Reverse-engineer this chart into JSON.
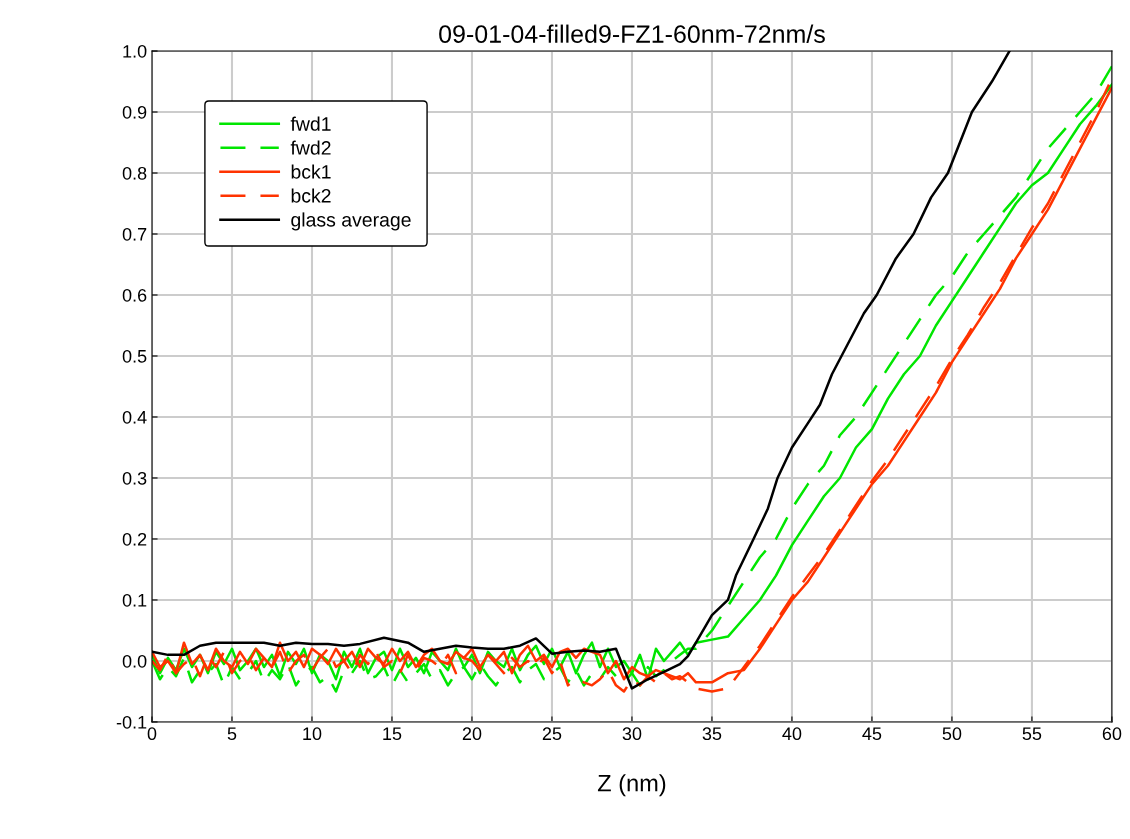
{
  "chart_data": {
    "type": "line",
    "title": "09-01-04-filled9-FZ1-60nm-72nm/s",
    "xlabel": "Z (nm)",
    "x": [
      0,
      0.5,
      1,
      1.5,
      2,
      2.5,
      3,
      3.5,
      4,
      4.5,
      5,
      5.5,
      6,
      6.5,
      7,
      7.5,
      8,
      8.5,
      9,
      9.5,
      10,
      10.5,
      11,
      11.5,
      12,
      12.5,
      13,
      13.5,
      14,
      14.5,
      15,
      15.5,
      16,
      16.5,
      17,
      17.5,
      18,
      18.5,
      19,
      19.5,
      20,
      20.5,
      21,
      21.5,
      22,
      22.5,
      23,
      23.5,
      24,
      24.5,
      25,
      25.5,
      26,
      26.5,
      27,
      27.5,
      28,
      28.5,
      29,
      29.5,
      30,
      30.5,
      31,
      31.5,
      32,
      32.5,
      33,
      33.5,
      34,
      35,
      36,
      37,
      38,
      39,
      40,
      41,
      42,
      43,
      44,
      45,
      46,
      47,
      48,
      49,
      50,
      51,
      52,
      53,
      54,
      55,
      56,
      57,
      58,
      59,
      60
    ],
    "series": [
      {
        "name": "fwd1",
        "color": "#00e600",
        "line_style": "solid",
        "values": [
          0.01,
          -0.02,
          0.005,
          -0.015,
          0.02,
          -0.01,
          0.01,
          -0.02,
          0.015,
          -0.005,
          0.02,
          -0.015,
          0.0,
          0.02,
          -0.01,
          0.01,
          -0.025,
          0.015,
          -0.005,
          0.02,
          -0.02,
          0.01,
          0.0,
          -0.03,
          0.015,
          -0.01,
          0.02,
          -0.02,
          0.005,
          0.015,
          -0.015,
          0.02,
          -0.01,
          0.005,
          -0.02,
          0.015,
          0.0,
          -0.015,
          0.02,
          -0.01,
          0.01,
          -0.02,
          0.015,
          0.0,
          -0.01,
          0.02,
          -0.015,
          0.01,
          0.025,
          -0.005,
          0.02,
          -0.01,
          0.015,
          -0.02,
          0.01,
          0.03,
          -0.01,
          0.02,
          -0.01,
          0.0,
          -0.02,
          0.01,
          -0.03,
          0.02,
          0.0,
          0.015,
          0.03,
          0.01,
          0.03,
          0.035,
          0.04,
          0.07,
          0.1,
          0.14,
          0.19,
          0.23,
          0.27,
          0.3,
          0.35,
          0.38,
          0.43,
          0.47,
          0.5,
          0.55,
          0.59,
          0.63,
          0.67,
          0.71,
          0.75,
          0.78,
          0.8,
          0.84,
          0.88,
          0.91,
          0.945
        ]
      },
      {
        "name": "fwd2",
        "color": "#00e600",
        "line_style": "dashed",
        "values": [
          0.0,
          -0.03,
          -0.01,
          -0.025,
          0.005,
          -0.035,
          -0.015,
          -0.02,
          -0.005,
          -0.04,
          -0.01,
          -0.03,
          -0.02,
          0.0,
          -0.035,
          -0.015,
          -0.03,
          -0.005,
          -0.04,
          -0.02,
          -0.01,
          -0.035,
          -0.025,
          -0.05,
          -0.015,
          -0.02,
          0.0,
          -0.03,
          -0.025,
          -0.01,
          -0.04,
          -0.015,
          -0.035,
          -0.02,
          -0.005,
          -0.03,
          -0.015,
          -0.04,
          -0.02,
          -0.01,
          -0.03,
          -0.005,
          -0.025,
          -0.04,
          -0.02,
          -0.01,
          -0.035,
          -0.015,
          -0.005,
          -0.03,
          -0.02,
          -0.01,
          -0.035,
          -0.015,
          -0.04,
          -0.02,
          -0.03,
          -0.01,
          -0.025,
          -0.035,
          -0.02,
          -0.04,
          -0.01,
          -0.025,
          -0.015,
          0.0,
          0.01,
          0.02,
          0.02,
          0.05,
          0.09,
          0.13,
          0.17,
          0.2,
          0.25,
          0.29,
          0.32,
          0.37,
          0.4,
          0.44,
          0.48,
          0.52,
          0.56,
          0.6,
          0.63,
          0.67,
          0.7,
          0.73,
          0.76,
          0.8,
          0.84,
          0.87,
          0.9,
          0.93,
          0.975
        ]
      },
      {
        "name": "bck1",
        "color": "#ff3300",
        "line_style": "solid",
        "values": [
          0.015,
          -0.01,
          0.0,
          -0.02,
          0.03,
          -0.005,
          0.01,
          -0.015,
          0.02,
          0.0,
          -0.01,
          0.015,
          -0.005,
          0.02,
          0.005,
          -0.01,
          0.03,
          0.0,
          0.015,
          -0.01,
          0.02,
          0.01,
          -0.005,
          0.02,
          0.0,
          0.015,
          -0.01,
          0.02,
          0.005,
          -0.005,
          0.02,
          0.0,
          0.015,
          -0.01,
          0.01,
          0.02,
          0.0,
          -0.005,
          0.015,
          0.005,
          0.02,
          -0.01,
          0.01,
          0.0,
          0.015,
          -0.02,
          0.01,
          0.025,
          0.0,
          0.01,
          -0.01,
          0.015,
          0.02,
          0.005,
          0.02,
          0.015,
          0.01,
          -0.02,
          0.0,
          -0.03,
          -0.01,
          -0.02,
          -0.025,
          -0.015,
          -0.02,
          -0.025,
          -0.03,
          -0.02,
          -0.035,
          -0.035,
          -0.02,
          -0.015,
          0.02,
          0.06,
          0.1,
          0.13,
          0.17,
          0.21,
          0.25,
          0.29,
          0.32,
          0.36,
          0.4,
          0.44,
          0.49,
          0.53,
          0.57,
          0.61,
          0.66,
          0.7,
          0.74,
          0.79,
          0.84,
          0.89,
          0.94
        ]
      },
      {
        "name": "bck2",
        "color": "#ff3300",
        "line_style": "dashed",
        "values": [
          0.0,
          -0.015,
          0.01,
          -0.02,
          -0.005,
          0.005,
          -0.025,
          0.01,
          -0.01,
          0.015,
          -0.02,
          0.0,
          0.01,
          -0.015,
          0.005,
          -0.01,
          0.015,
          -0.02,
          0.0,
          0.01,
          -0.015,
          0.005,
          0.02,
          -0.01,
          0.0,
          -0.02,
          0.01,
          -0.005,
          0.015,
          -0.01,
          0.0,
          -0.02,
          0.01,
          -0.015,
          0.005,
          0.0,
          -0.01,
          0.01,
          -0.02,
          0.005,
          0.0,
          -0.015,
          0.01,
          -0.005,
          -0.02,
          0.005,
          -0.01,
          0.0,
          -0.01,
          0.005,
          -0.02,
          0.0,
          -0.04,
          -0.03,
          -0.035,
          -0.04,
          -0.03,
          -0.015,
          -0.04,
          -0.05,
          -0.03,
          -0.04,
          -0.025,
          -0.035,
          -0.02,
          -0.03,
          -0.025,
          -0.035,
          -0.045,
          -0.05,
          -0.045,
          -0.01,
          0.025,
          0.065,
          0.105,
          0.14,
          0.175,
          0.215,
          0.255,
          0.295,
          0.33,
          0.37,
          0.41,
          0.45,
          0.495,
          0.535,
          0.58,
          0.62,
          0.665,
          0.71,
          0.75,
          0.8,
          0.85,
          0.9,
          0.955
        ]
      },
      {
        "name": "glass average",
        "color": "#000000",
        "line_style": "solid",
        "x": [
          0,
          1,
          2,
          3,
          4,
          5,
          6,
          7,
          8,
          9,
          10,
          11,
          12,
          13,
          14.5,
          16,
          17,
          18,
          19,
          20,
          21,
          22,
          23,
          24,
          25,
          26,
          27,
          28,
          29,
          30,
          31,
          32,
          33,
          33.5,
          34,
          35,
          36,
          36.5,
          37.6,
          38.5,
          39.1,
          40,
          41,
          41.75,
          42.5,
          43.5,
          44.5,
          45.3,
          46.5,
          47.6,
          48.7,
          49.75,
          50.5,
          51.25,
          52.5,
          53.6
        ],
        "values": [
          0.015,
          0.01,
          0.01,
          0.025,
          0.03,
          0.03,
          0.03,
          0.03,
          0.025,
          0.03,
          0.028,
          0.028,
          0.025,
          0.028,
          0.038,
          0.03,
          0.015,
          0.02,
          0.025,
          0.022,
          0.02,
          0.02,
          0.025,
          0.037,
          0.012,
          0.015,
          0.017,
          0.015,
          0.02,
          -0.045,
          -0.03,
          -0.018,
          -0.005,
          0.008,
          0.03,
          0.075,
          0.1,
          0.14,
          0.2,
          0.25,
          0.3,
          0.35,
          0.39,
          0.42,
          0.47,
          0.52,
          0.57,
          0.6,
          0.66,
          0.7,
          0.76,
          0.8,
          0.85,
          0.9,
          0.95,
          1.0
        ]
      }
    ],
    "xlim": [
      0,
      60
    ],
    "xticks": [
      0,
      5,
      10,
      15,
      20,
      25,
      30,
      35,
      40,
      45,
      50,
      55,
      60
    ],
    "ylim": [
      -0.1,
      1.0
    ],
    "yticks": [
      -0.1,
      {
        "value": 0,
        "label": "0.0"
      },
      0.1,
      0.2,
      0.3,
      0.4,
      0.5,
      0.6,
      0.7,
      0.8,
      0.9,
      {
        "value": 1,
        "label": "1.0"
      }
    ],
    "grid": true,
    "legend": "top left"
  }
}
